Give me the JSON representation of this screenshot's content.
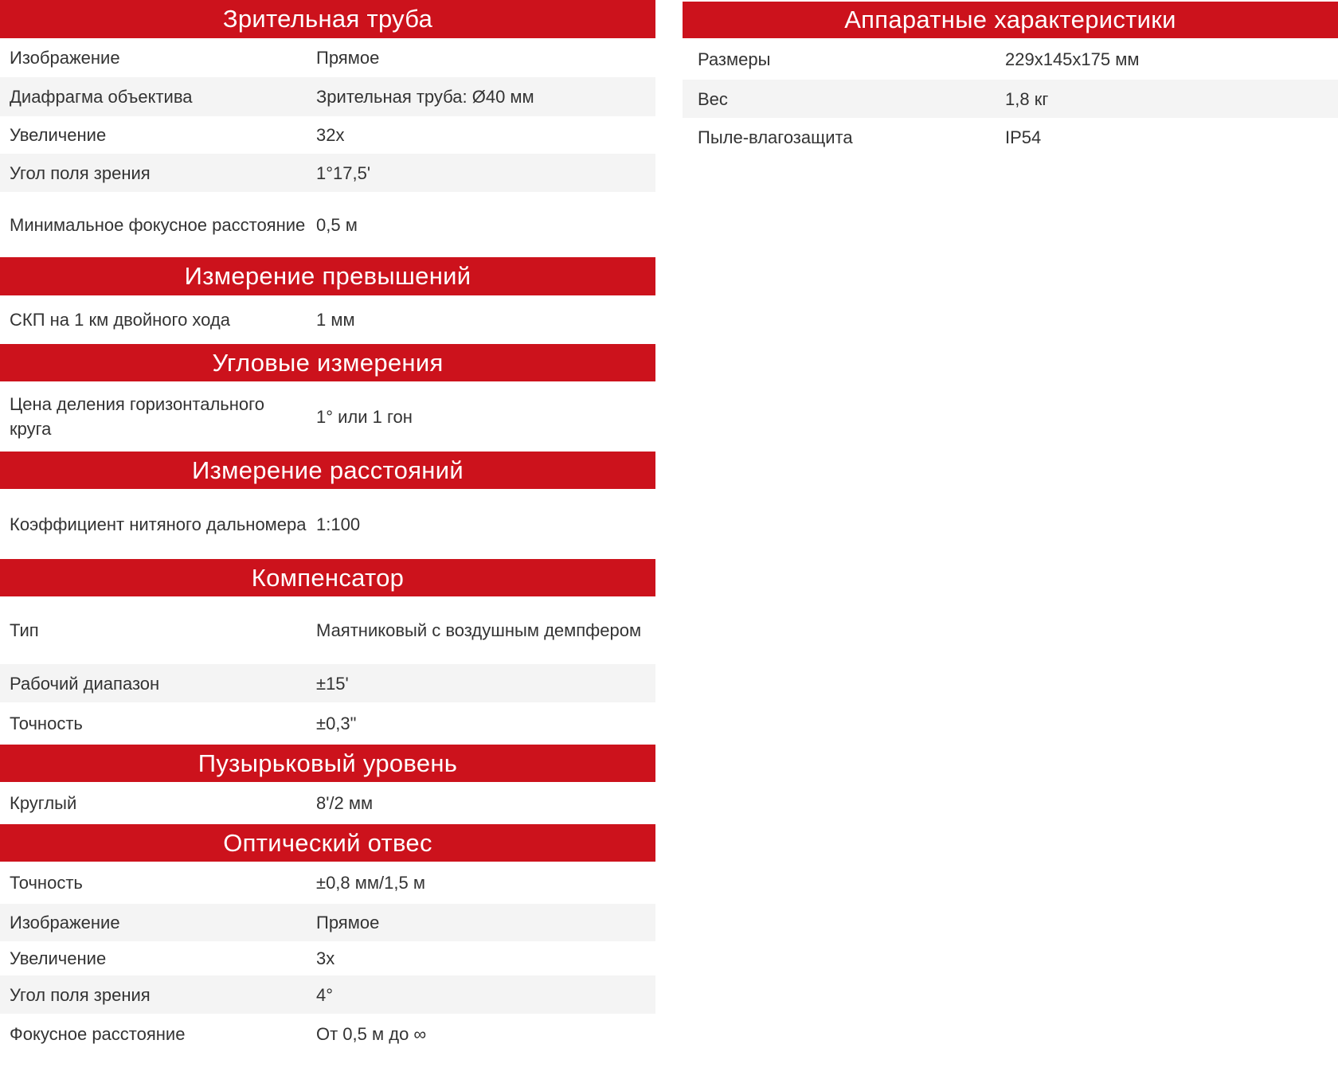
{
  "left_sections": [
    {
      "title": "Зрительная труба",
      "rows": [
        {
          "label": "Изображение",
          "value": "Прямое"
        },
        {
          "label": "Диафрагма объектива",
          "value": "Зрительная труба: Ø40 мм"
        },
        {
          "label": "Увеличение",
          "value": "32x"
        },
        {
          "label": "Угол поля зрения",
          "value": "1°17,5'"
        },
        {
          "label": "Минимальное фокусное расстояние",
          "value": "0,5 м"
        }
      ]
    },
    {
      "title": "Измерение превышений",
      "rows": [
        {
          "label": "СКП на 1 км двойного хода",
          "value": "1 мм"
        }
      ]
    },
    {
      "title": "Угловые измерения",
      "rows": [
        {
          "label": "Цена деления горизонтального круга",
          "value": "1° или 1 гон"
        }
      ]
    },
    {
      "title": "Измерение расстояний",
      "rows": [
        {
          "label": "Коэффициент нитяного дальномера",
          "value": "1:100"
        }
      ]
    },
    {
      "title": "Компенсатор",
      "rows": [
        {
          "label": "Тип",
          "value": "Маятниковый с воздушным демпфером"
        },
        {
          "label": "Рабочий диапазон",
          "value": "±15'"
        },
        {
          "label": "Точность",
          "value": "±0,3\""
        }
      ]
    },
    {
      "title": "Пузырьковый уровень",
      "rows": [
        {
          "label": "Круглый",
          "value": "8'/2 мм"
        }
      ]
    },
    {
      "title": "Оптический отвес",
      "rows": [
        {
          "label": "Точность",
          "value": "±0,8 мм/1,5 м"
        },
        {
          "label": "Изображение",
          "value": "Прямое"
        },
        {
          "label": "Увеличение",
          "value": "3x"
        },
        {
          "label": "Угол поля зрения",
          "value": "4°"
        },
        {
          "label": "Фокусное расстояние",
          "value": "От 0,5 м до ∞"
        }
      ]
    }
  ],
  "right_sections": [
    {
      "title": "Аппаратные характеристики",
      "rows": [
        {
          "label": "Размеры",
          "value": "229x145x175 мм"
        },
        {
          "label": "Вес",
          "value": "1,8 кг"
        },
        {
          "label": "Пыле-влагозащита",
          "value": "IP54"
        }
      ]
    }
  ],
  "colors": {
    "header_bg": "#cc121c",
    "header_text": "#ffffff",
    "stripe": "#f4f4f4",
    "text": "#333333"
  }
}
